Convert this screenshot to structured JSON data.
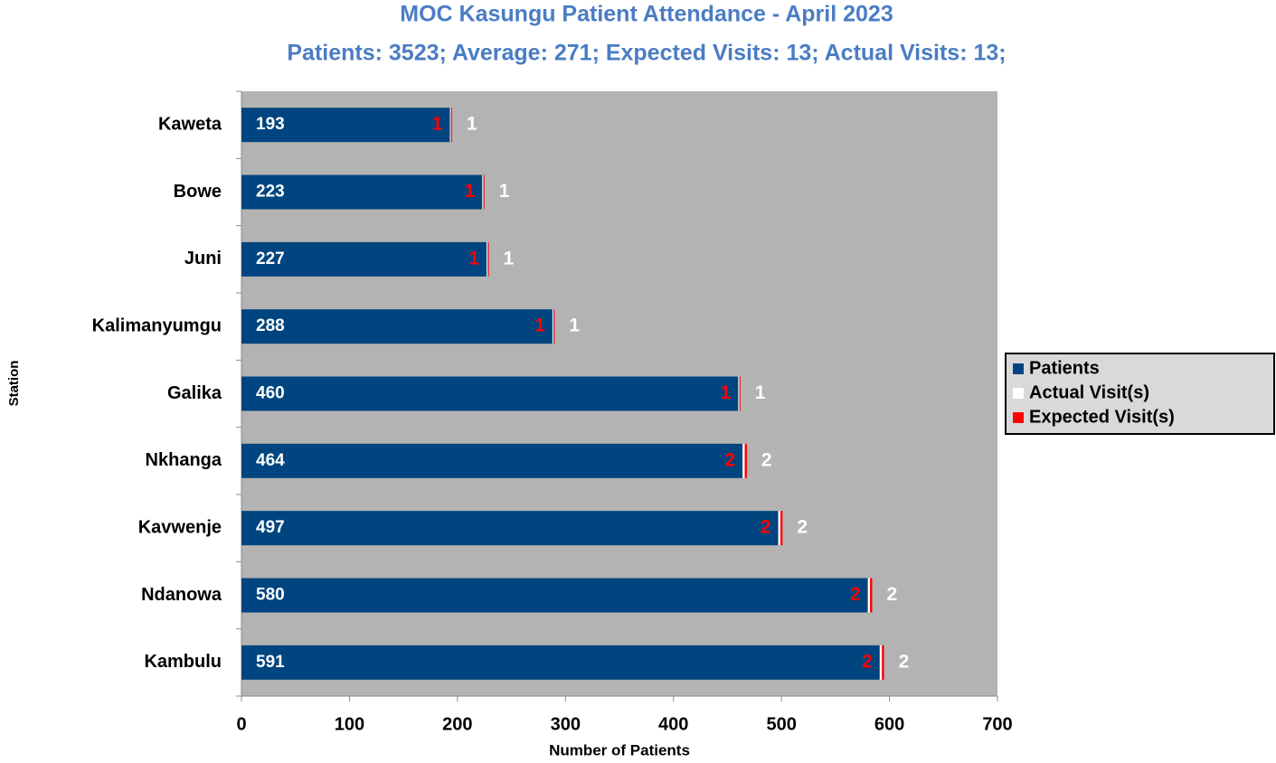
{
  "chart_data": {
    "type": "stacked_bar_horizontal",
    "title": "MOC Kasungu Patient Attendance - April 2023",
    "subtitle": "Patients: 3523; Average: 271; Expected Visits: 13; Actual Visits: 13;",
    "x_label": "Number of Patients",
    "y_label": "Station",
    "categories": [
      "Kaweta",
      "Bowe",
      "Juni",
      "Kalimanyumgu",
      "Galika",
      "Nkhanga",
      "Kavwenje",
      "Ndanowa",
      "Kambulu"
    ],
    "series": [
      {
        "name": "Patients",
        "color": "#00457f",
        "values": [
          193,
          223,
          227,
          288,
          460,
          464,
          497,
          580,
          591
        ]
      },
      {
        "name": "Actual Visit(s)",
        "color": "#ffffff",
        "values": [
          1,
          1,
          1,
          1,
          1,
          2,
          2,
          2,
          2
        ]
      },
      {
        "name": "Expected Visit(s)",
        "color": "#ff0000",
        "values": [
          1,
          1,
          1,
          1,
          1,
          2,
          2,
          2,
          2
        ]
      }
    ],
    "xlim": [
      0,
      700
    ],
    "xticks": [
      0,
      100,
      200,
      300,
      400,
      500,
      600,
      700
    ],
    "grid": false,
    "legend": "right"
  }
}
